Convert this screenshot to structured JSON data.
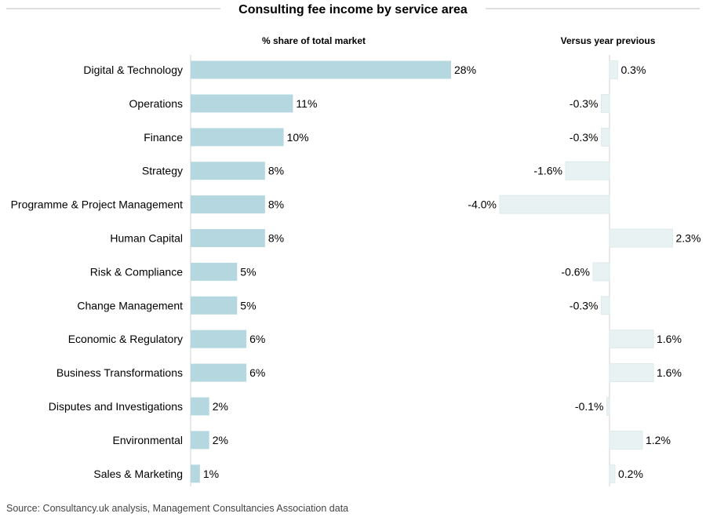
{
  "title": "Consulting fee income by service area",
  "source": "Source: Consultancy.uk analysis, Management Consultancies Association data",
  "chart_data": [
    {
      "type": "bar",
      "orientation": "horizontal",
      "subtitle": "% share of total market",
      "categories": [
        "Digital & Technology",
        "Operations",
        "Finance",
        "Strategy",
        "Programme & Project Management",
        "Human Capital",
        "Risk & Compliance",
        "Change Management",
        "Economic & Regulatory",
        "Business Transformations",
        "Disputes and Investigations",
        "Environmental",
        "Sales & Marketing"
      ],
      "values": [
        28,
        11,
        10,
        8,
        8,
        8,
        5,
        5,
        6,
        6,
        2,
        2,
        1
      ],
      "labels": [
        "28%",
        "11%",
        "10%",
        "8%",
        "8%",
        "8%",
        "5%",
        "5%",
        "6%",
        "6%",
        "2%",
        "2%",
        "1%"
      ],
      "xlim": [
        0,
        28
      ],
      "color": "#b5d8e0",
      "grid": false
    },
    {
      "type": "bar",
      "orientation": "horizontal",
      "subtitle": "Versus year previous",
      "categories": [
        "Digital & Technology",
        "Operations",
        "Finance",
        "Strategy",
        "Programme & Project Management",
        "Human Capital",
        "Risk & Compliance",
        "Change Management",
        "Economic & Regulatory",
        "Business Transformations",
        "Disputes and Investigations",
        "Environmental",
        "Sales & Marketing"
      ],
      "values": [
        0.3,
        -0.3,
        -0.3,
        -1.6,
        -4.0,
        2.3,
        -0.6,
        -0.3,
        1.6,
        1.6,
        -0.1,
        1.2,
        0.2
      ],
      "labels": [
        "0.3%",
        "-0.3%",
        "-0.3%",
        "-1.6%",
        "-4.0%",
        "2.3%",
        "-0.6%",
        "-0.3%",
        "1.6%",
        "1.6%",
        "-0.1%",
        "1.2%",
        "0.2%"
      ],
      "xlim": [
        -4.0,
        2.3
      ],
      "color": "#e8f2f3",
      "grid": false
    }
  ]
}
